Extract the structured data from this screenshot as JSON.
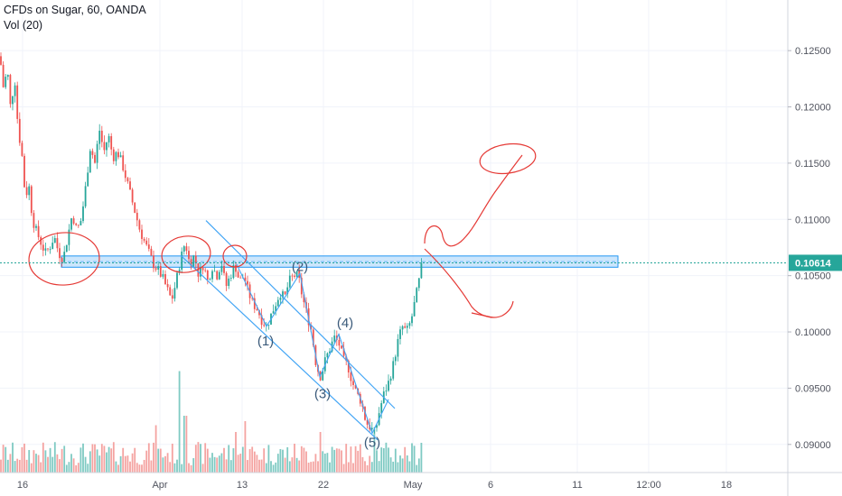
{
  "legend": {
    "title": "CFDs on Sugar, 60, OANDA",
    "volume_label": "Vol (20)"
  },
  "colors": {
    "up": "#26a69a",
    "down": "#ef5350",
    "up_volume": "#7fcac3",
    "down_volume": "#f4a3a1",
    "zone_fill": "#bbdefb",
    "zone_stroke": "#2196f3",
    "channel": "#42a5f5",
    "annotation": "#e53935",
    "price_line": "#26a69a",
    "wave_label": "#3a5a7a"
  },
  "current_price_badge": "0.10614",
  "wave_labels": [
    "(1)",
    "(2)",
    "(3)",
    "(4)",
    "(5)"
  ],
  "chart_data": {
    "type": "candlestick",
    "title": "CFDs on Sugar, 60, OANDA",
    "x_tick_labels": [
      "16",
      "Apr",
      "13",
      "22",
      "May",
      "6",
      "11",
      "12:00",
      "18"
    ],
    "y_tick_labels": [
      "0.12500",
      "0.12000",
      "0.11500",
      "0.11000",
      "0.10500",
      "0.10000",
      "0.09500",
      "0.09000"
    ],
    "ylim": [
      0.0875,
      0.1295
    ],
    "current_price": 0.10614,
    "resistance_zone": [
      0.10575,
      0.10675
    ],
    "path": [
      [
        0,
        0.1245
      ],
      [
        4,
        0.1215
      ],
      [
        8,
        0.1235
      ],
      [
        12,
        0.1195
      ],
      [
        16,
        0.123
      ],
      [
        20,
        0.118
      ],
      [
        24,
        0.116
      ],
      [
        28,
        0.112
      ],
      [
        32,
        0.113
      ],
      [
        36,
        0.11
      ],
      [
        40,
        0.109
      ],
      [
        45,
        0.108
      ],
      [
        50,
        0.107
      ],
      [
        55,
        0.1075
      ],
      [
        60,
        0.1085
      ],
      [
        65,
        0.107
      ],
      [
        70,
        0.1065
      ],
      [
        75,
        0.1085
      ],
      [
        80,
        0.1105
      ],
      [
        85,
        0.109
      ],
      [
        90,
        0.11
      ],
      [
        95,
        0.113
      ],
      [
        100,
        0.1165
      ],
      [
        105,
        0.115
      ],
      [
        110,
        0.118
      ],
      [
        115,
        0.116
      ],
      [
        120,
        0.1175
      ],
      [
        125,
        0.1155
      ],
      [
        130,
        0.116
      ],
      [
        135,
        0.115
      ],
      [
        140,
        0.1135
      ],
      [
        145,
        0.112
      ],
      [
        150,
        0.1105
      ],
      [
        155,
        0.109
      ],
      [
        160,
        0.108
      ],
      [
        165,
        0.107
      ],
      [
        170,
        0.106
      ],
      [
        175,
        0.1055
      ],
      [
        180,
        0.1048
      ],
      [
        185,
        0.1038
      ],
      [
        190,
        0.1028
      ],
      [
        195,
        0.1045
      ],
      [
        200,
        0.1065
      ],
      [
        205,
        0.108
      ],
      [
        210,
        0.106
      ],
      [
        215,
        0.1068
      ],
      [
        220,
        0.105
      ],
      [
        225,
        0.106
      ],
      [
        230,
        0.1045
      ],
      [
        235,
        0.1058
      ],
      [
        240,
        0.105
      ],
      [
        245,
        0.1062
      ],
      [
        250,
        0.104
      ],
      [
        255,
        0.105
      ],
      [
        260,
        0.106
      ],
      [
        265,
        0.1045
      ],
      [
        270,
        0.105
      ],
      [
        275,
        0.1035
      ],
      [
        280,
        0.1025
      ],
      [
        285,
        0.102
      ],
      [
        290,
        0.101
      ],
      [
        295,
        0.1005
      ],
      [
        300,
        0.1015
      ],
      [
        305,
        0.1025
      ],
      [
        310,
        0.1035
      ],
      [
        315,
        0.103
      ],
      [
        320,
        0.1045
      ],
      [
        325,
        0.105
      ],
      [
        330,
        0.105
      ],
      [
        335,
        0.103
      ],
      [
        340,
        0.1015
      ],
      [
        345,
        0.1
      ],
      [
        350,
        0.097
      ],
      [
        355,
        0.096
      ],
      [
        360,
        0.0975
      ],
      [
        365,
        0.0985
      ],
      [
        370,
        0.0995
      ],
      [
        375,
        0.099
      ],
      [
        380,
        0.0975
      ],
      [
        385,
        0.097
      ],
      [
        390,
        0.0955
      ],
      [
        395,
        0.0945
      ],
      [
        400,
        0.0938
      ],
      [
        405,
        0.092
      ],
      [
        410,
        0.0915
      ],
      [
        415,
        0.091
      ],
      [
        420,
        0.093
      ],
      [
        425,
        0.0945
      ],
      [
        430,
        0.0955
      ],
      [
        435,
        0.097
      ],
      [
        440,
        0.099
      ],
      [
        445,
        0.1005
      ],
      [
        450,
        0.1
      ],
      [
        455,
        0.101
      ],
      [
        460,
        0.103
      ],
      [
        465,
        0.105
      ],
      [
        469,
        0.107
      ]
    ],
    "volume_spikes": [
      [
        172,
        0.35
      ],
      [
        198,
        0.75
      ],
      [
        205,
        0.42
      ],
      [
        262,
        0.3
      ],
      [
        272,
        0.38
      ],
      [
        355,
        0.3
      ],
      [
        415,
        0.32
      ],
      [
        467,
        0.22
      ]
    ],
    "volume_max": 1.0
  }
}
